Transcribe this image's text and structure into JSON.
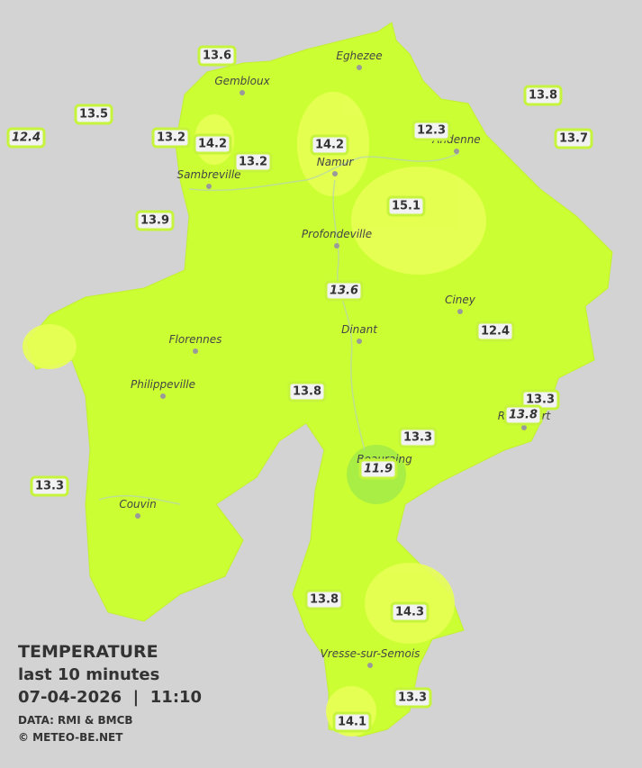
{
  "legend": {
    "title": "TEMPERATURE",
    "subtitle": "last 10 minutes",
    "timestamp": "07-04-2026  |  11:10",
    "source": "DATA: RMI & BMCB",
    "copyright": "© METEO-BE.NET"
  },
  "towns": [
    "Eghezee",
    "Gembloux",
    "Andenne",
    "Namur",
    "Sambreville",
    "Profondeville",
    "Ciney",
    "Dinant",
    "Florennes",
    "Philippeville",
    "Rochefort",
    "Beauraing",
    "Couvin",
    "Vresse-sur-Semois"
  ],
  "stations": [
    {
      "value": "13.6",
      "italic": false
    },
    {
      "value": "13.5",
      "italic": false
    },
    {
      "value": "12.4",
      "italic": true
    },
    {
      "value": "13.2",
      "italic": false
    },
    {
      "value": "14.2",
      "italic": false
    },
    {
      "value": "13.2",
      "italic": false
    },
    {
      "value": "14.2",
      "italic": false
    },
    {
      "value": "12.3",
      "italic": false
    },
    {
      "value": "13.8",
      "italic": false
    },
    {
      "value": "13.7",
      "italic": false
    },
    {
      "value": "15.1",
      "italic": false
    },
    {
      "value": "13.9",
      "italic": false
    },
    {
      "value": "13.6",
      "italic": true
    },
    {
      "value": "12.4",
      "italic": false
    },
    {
      "value": "13.8",
      "italic": false
    },
    {
      "value": "13.3",
      "italic": false
    },
    {
      "value": "13.8",
      "italic": true
    },
    {
      "value": "13.3",
      "italic": false
    },
    {
      "value": "11.9",
      "italic": true
    },
    {
      "value": "13.3",
      "italic": false
    },
    {
      "value": "13.8",
      "italic": false
    },
    {
      "value": "14.3",
      "italic": false
    },
    {
      "value": "13.3",
      "italic": false
    },
    {
      "value": "14.1",
      "italic": false
    }
  ]
}
